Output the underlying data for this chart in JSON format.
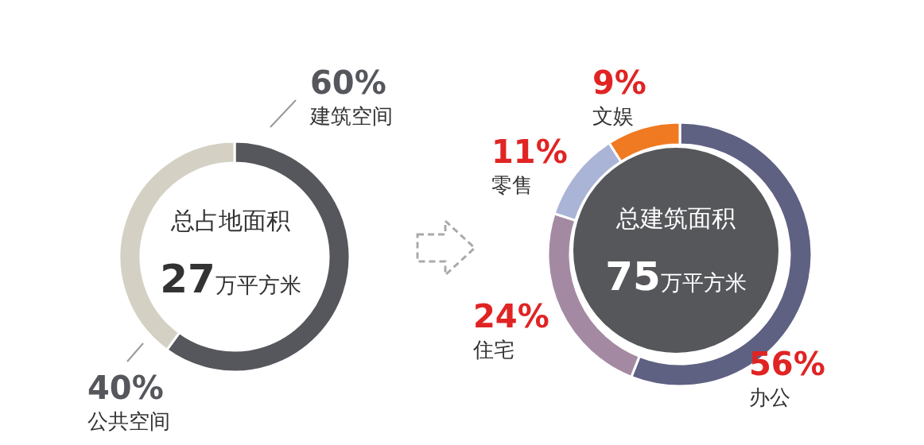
{
  "chart_data": [
    {
      "type": "donut",
      "title": "总占地面积",
      "subtitle": "27万平方米",
      "categories": [
        "建筑空间",
        "公共空间"
      ],
      "values": [
        60,
        40
      ],
      "colors": [
        "#55575c",
        "#d4d0c4"
      ],
      "value_labels": [
        "60%",
        "40%"
      ]
    },
    {
      "type": "donut",
      "title": "总建筑面积",
      "subtitle": "75万平方米",
      "categories": [
        "办公",
        "住宅",
        "零售",
        "文娱"
      ],
      "values": [
        56,
        24,
        11,
        9
      ],
      "colors": [
        "#5f6183",
        "#a38aa2",
        "#aab4d6",
        "#f07a22"
      ],
      "value_labels": [
        "56%",
        "24%",
        "11%",
        "9%"
      ]
    }
  ]
}
